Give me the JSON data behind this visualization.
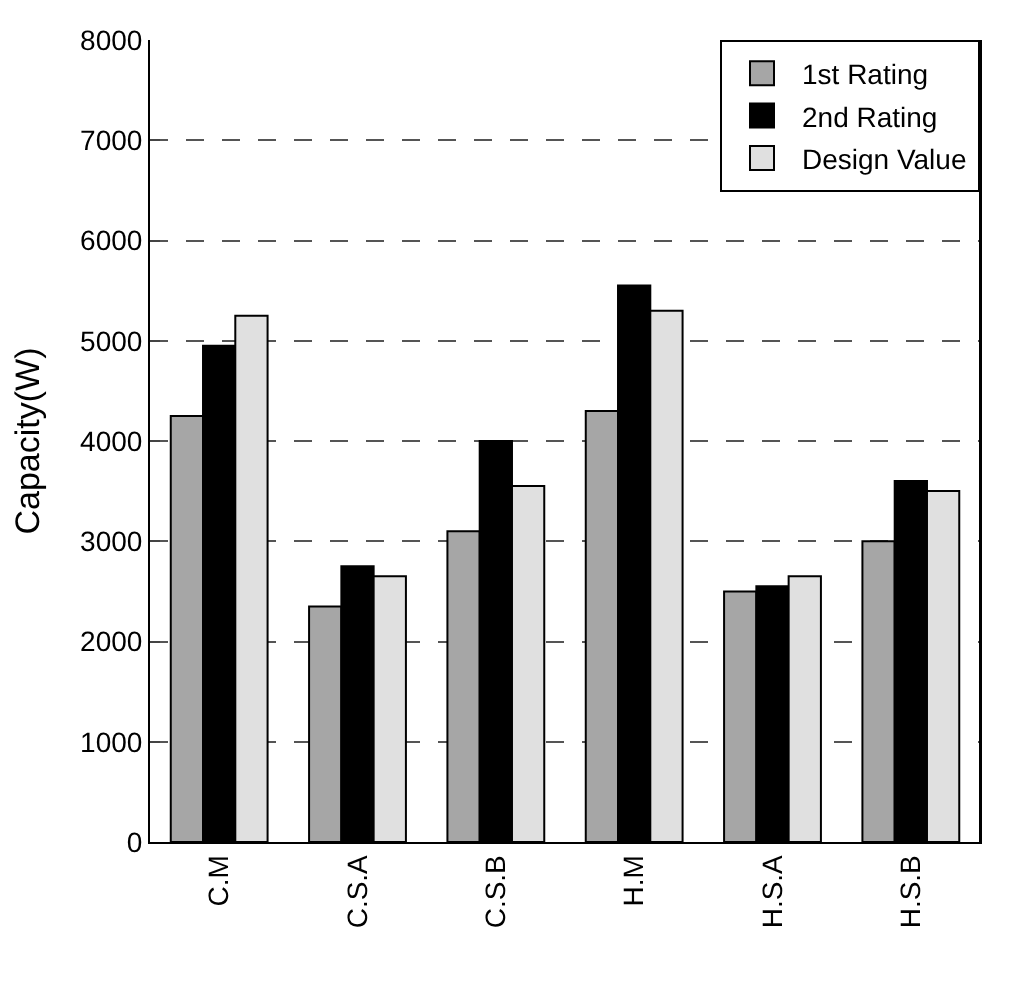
{
  "chart_data": {
    "type": "bar",
    "ylabel": "Capacity(W)",
    "categories": [
      "C.M",
      "C.S.A",
      "C.S.B",
      "H.M",
      "H.S.A",
      "H.S.B"
    ],
    "series": [
      {
        "name": "1st Rating",
        "color": "#a6a6a6",
        "values": [
          4250,
          2350,
          3100,
          4300,
          2500,
          3000
        ]
      },
      {
        "name": "2nd Rating",
        "color": "#000000",
        "values": [
          4950,
          2750,
          4000,
          5550,
          2550,
          3600
        ]
      },
      {
        "name": "Design Value",
        "color": "#e0e0e0",
        "values": [
          5250,
          2650,
          3550,
          5300,
          2650,
          3500
        ]
      }
    ],
    "ylim": [
      0,
      8000
    ],
    "yticks": [
      0,
      1000,
      2000,
      3000,
      4000,
      5000,
      6000,
      7000,
      8000
    ],
    "grid": "y",
    "legend": "top right"
  }
}
